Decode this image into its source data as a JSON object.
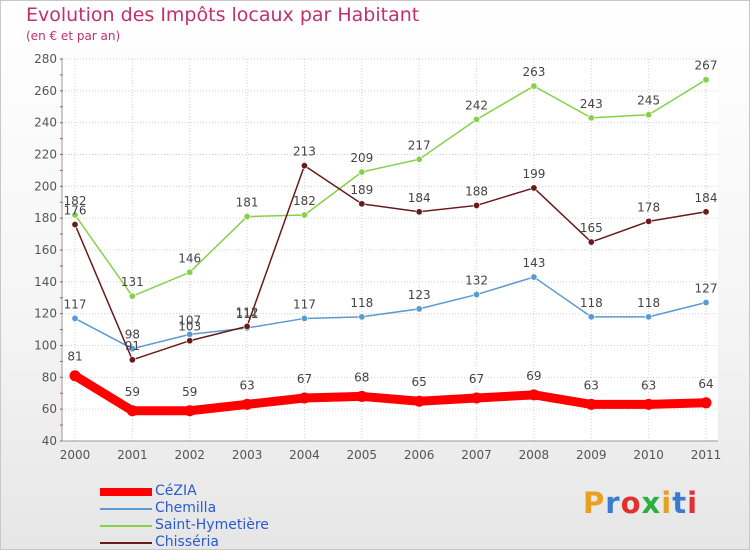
{
  "header": {
    "title": "Evolution des Impôts locaux par Habitant",
    "subtitle": "(en € et par an)"
  },
  "logo": {
    "text": "Proxiti",
    "colors": [
      "#e8a020",
      "#3a7ad0",
      "#e03030",
      "#2ab040",
      "#e8a020",
      "#3a7ad0",
      "#e03030"
    ]
  },
  "chart_data": {
    "type": "line",
    "title": "Evolution des Impôts locaux par Habitant",
    "subtitle": "(en € et par an)",
    "xlabel": "",
    "ylabel": "",
    "x": [
      "2000",
      "2001",
      "2002",
      "2003",
      "2004",
      "2005",
      "2006",
      "2007",
      "2008",
      "2009",
      "2010",
      "2011"
    ],
    "ylim": [
      40,
      280
    ],
    "yticks": [
      "40",
      "60",
      "80",
      "100",
      "120",
      "140",
      "160",
      "180",
      "200",
      "220",
      "240",
      "260",
      "280"
    ],
    "grid": true,
    "legend_position": "bottom-left",
    "series": [
      {
        "name": "CéZIA",
        "values": [
          81,
          59,
          59,
          63,
          67,
          68,
          65,
          67,
          69,
          63,
          63,
          64
        ],
        "labels": [
          "81",
          "59",
          "59",
          "63",
          "67",
          "68",
          "65",
          "67",
          "69",
          "63",
          "63",
          "64"
        ],
        "color": "#ff0000",
        "bold": true
      },
      {
        "name": "Chemilla",
        "values": [
          117,
          98,
          107,
          111,
          117,
          118,
          123,
          132,
          143,
          118,
          118,
          127
        ],
        "labels": [
          "117",
          "98",
          "107",
          "111",
          "117",
          "118",
          "123",
          "132",
          "143",
          "118",
          "118",
          "127"
        ],
        "color": "#5a9ad2",
        "bold": false
      },
      {
        "name": "Saint-Hymetière",
        "values": [
          182,
          131,
          146,
          181,
          182,
          209,
          217,
          242,
          263,
          243,
          245,
          267
        ],
        "labels": [
          "182",
          "131",
          "146",
          "181",
          "182",
          "209",
          "217",
          "242",
          "263",
          "243",
          "245",
          "267"
        ],
        "color": "#88d048",
        "bold": false
      },
      {
        "name": "Chisséria",
        "values": [
          176,
          91,
          103,
          112,
          213,
          189,
          184,
          188,
          199,
          165,
          178,
          184
        ],
        "labels": [
          "176",
          "91",
          "103",
          "112",
          "213",
          "189",
          "184",
          "188",
          "199",
          "165",
          "178",
          "184"
        ],
        "color": "#6a1a1a",
        "bold": false
      }
    ]
  }
}
